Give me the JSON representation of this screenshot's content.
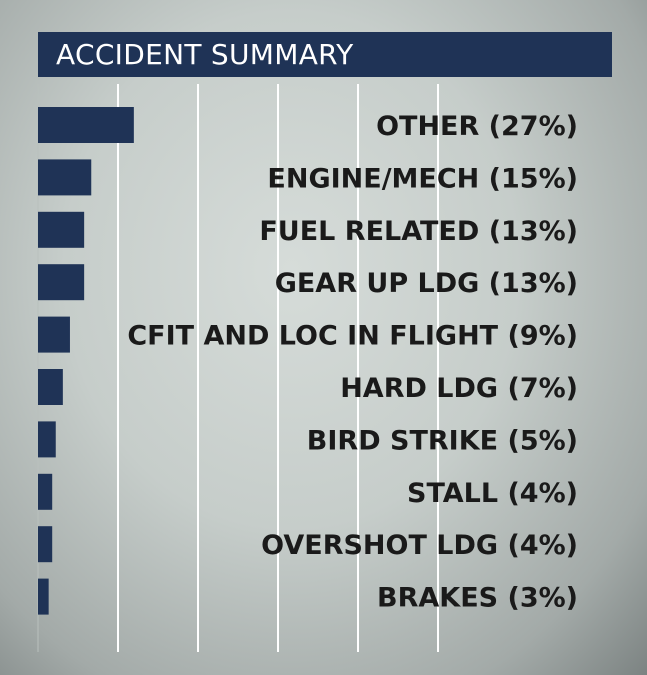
{
  "chart_data": {
    "type": "bar",
    "orientation": "horizontal",
    "title": "ACCIDENT SUMMARY",
    "categories": [
      "OTHER",
      "ENGINE/MECH",
      "FUEL RELATED",
      "GEAR UP LDG",
      "CFIT AND LOC IN FLIGHT",
      "HARD LDG",
      "BIRD STRIKE",
      "STALL",
      "OVERSHOT LDG",
      "BRAKES"
    ],
    "values": [
      27,
      15,
      13,
      13,
      9,
      7,
      5,
      4,
      4,
      3
    ],
    "labels": [
      "OTHER (27%)",
      "ENGINE/MECH (15%)",
      "FUEL RELATED (13%)",
      "GEAR UP LDG (13%)",
      "CFIT AND LOC IN FLIGHT (9%)",
      "HARD LDG (7%)",
      "BIRD STRIKE (5%)",
      "STALL (4%)",
      "OVERSHOT LDG (4%)",
      "BRAKES (3%)"
    ],
    "xlim": [
      0,
      100
    ],
    "grid": true,
    "bar_color": "#1f3356",
    "grid_color": "#ffffff"
  }
}
